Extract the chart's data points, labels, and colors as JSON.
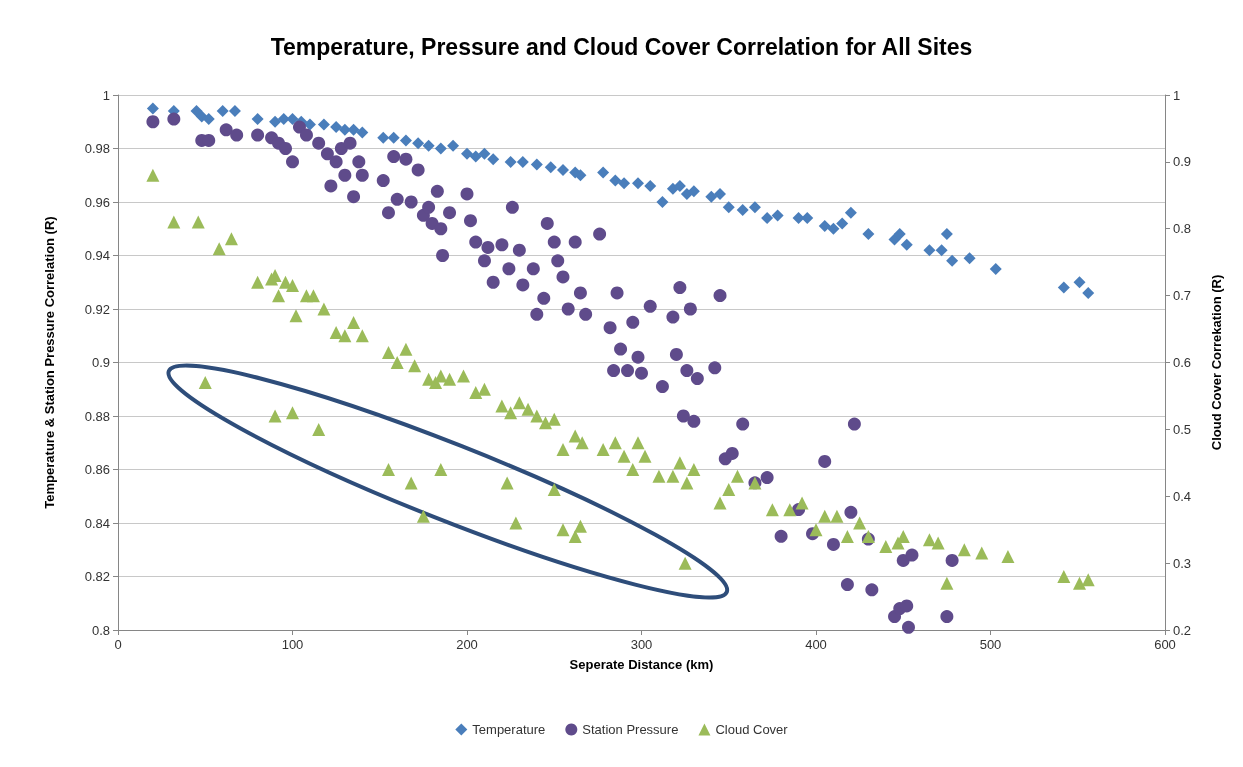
{
  "chart_data": {
    "type": "scatter",
    "title": "Temperature, Pressure and Cloud Cover Correlation for All Sites",
    "xlabel": "Seperate Distance (km)",
    "ylabel": "Temperature & Station Pressure Correlation (R)",
    "y2label": "Cloud Cover Correkation (R)",
    "xlim": [
      0,
      600
    ],
    "xticks": [
      0,
      100,
      200,
      300,
      400,
      500,
      600
    ],
    "ylim": [
      0.8,
      1
    ],
    "yticks": [
      0.8,
      0.82,
      0.84,
      0.86,
      0.88,
      0.9,
      0.92,
      0.94,
      0.96,
      0.98,
      1
    ],
    "y2lim": [
      0.2,
      1
    ],
    "y2ticks": [
      0.2,
      0.3,
      0.4,
      0.5,
      0.6,
      0.7,
      0.8,
      0.9,
      1
    ],
    "grid": "y",
    "legend": "bottom",
    "series": [
      {
        "name": "Temperature",
        "color": "#4a7ebb",
        "marker": "diamond",
        "x": [
          20,
          32,
          45,
          48,
          52,
          60,
          67,
          80,
          90,
          95,
          100,
          105,
          110,
          118,
          125,
          130,
          135,
          140,
          152,
          158,
          165,
          172,
          178,
          185,
          192,
          200,
          205,
          210,
          215,
          225,
          232,
          240,
          248,
          255,
          262,
          265,
          278,
          285,
          290,
          298,
          305,
          312,
          318,
          322,
          326,
          330,
          340,
          345,
          350,
          358,
          365,
          372,
          378,
          390,
          395,
          405,
          410,
          415,
          420,
          430,
          445,
          448,
          452,
          465,
          472,
          475,
          478,
          488,
          503,
          542,
          551,
          556
        ],
        "values": [
          0.995,
          0.994,
          0.994,
          0.992,
          0.991,
          0.994,
          0.994,
          0.991,
          0.99,
          0.991,
          0.991,
          0.99,
          0.989,
          0.989,
          0.988,
          0.987,
          0.987,
          0.986,
          0.984,
          0.984,
          0.983,
          0.982,
          0.981,
          0.98,
          0.981,
          0.978,
          0.977,
          0.978,
          0.976,
          0.975,
          0.975,
          0.974,
          0.973,
          0.972,
          0.971,
          0.97,
          0.971,
          0.968,
          0.967,
          0.967,
          0.966,
          0.96,
          0.965,
          0.966,
          0.963,
          0.964,
          0.962,
          0.963,
          0.958,
          0.957,
          0.958,
          0.954,
          0.955,
          0.954,
          0.954,
          0.951,
          0.95,
          0.952,
          0.956,
          0.948,
          0.946,
          0.948,
          0.944,
          0.942,
          0.942,
          0.948,
          0.938,
          0.939,
          0.935,
          0.928,
          0.93,
          0.926
        ]
      },
      {
        "name": "Station Pressure",
        "color": "#5f4b8b",
        "marker": "circle",
        "x": [
          20,
          32,
          48,
          52,
          62,
          68,
          80,
          88,
          92,
          96,
          100,
          104,
          108,
          115,
          120,
          122,
          125,
          128,
          130,
          133,
          135,
          138,
          140,
          152,
          155,
          158,
          160,
          165,
          168,
          172,
          175,
          178,
          180,
          183,
          185,
          186,
          190,
          200,
          202,
          205,
          210,
          212,
          215,
          220,
          224,
          226,
          230,
          232,
          238,
          240,
          244,
          246,
          250,
          252,
          255,
          258,
          262,
          265,
          268,
          276,
          282,
          284,
          286,
          288,
          292,
          295,
          298,
          300,
          305,
          312,
          318,
          320,
          322,
          324,
          326,
          328,
          330,
          332,
          342,
          345,
          348,
          352,
          358,
          365,
          372,
          380,
          390,
          398,
          405,
          410,
          418,
          420,
          422,
          430,
          432,
          445,
          448,
          450,
          452,
          453,
          455,
          475,
          478
        ],
        "values": [
          0.99,
          0.991,
          0.983,
          0.983,
          0.987,
          0.985,
          0.985,
          0.984,
          0.982,
          0.98,
          0.975,
          0.988,
          0.985,
          0.982,
          0.978,
          0.966,
          0.975,
          0.98,
          0.97,
          0.982,
          0.962,
          0.975,
          0.97,
          0.968,
          0.956,
          0.977,
          0.961,
          0.976,
          0.96,
          0.972,
          0.955,
          0.958,
          0.952,
          0.964,
          0.95,
          0.94,
          0.956,
          0.963,
          0.953,
          0.945,
          0.938,
          0.943,
          0.93,
          0.944,
          0.935,
          0.958,
          0.942,
          0.929,
          0.935,
          0.918,
          0.924,
          0.952,
          0.945,
          0.938,
          0.932,
          0.92,
          0.945,
          0.926,
          0.918,
          0.948,
          0.913,
          0.897,
          0.926,
          0.905,
          0.897,
          0.915,
          0.902,
          0.896,
          0.921,
          0.891,
          0.917,
          0.903,
          0.928,
          0.88,
          0.897,
          0.92,
          0.878,
          0.894,
          0.898,
          0.925,
          0.864,
          0.866,
          0.877,
          0.855,
          0.857,
          0.835,
          0.845,
          0.836,
          0.863,
          0.832,
          0.817,
          0.844,
          0.877,
          0.834,
          0.815,
          0.805,
          0.808,
          0.826,
          0.809,
          0.801,
          0.828,
          0.805,
          0.826
        ]
      },
      {
        "name": "Cloud Cover",
        "color": "#9bbb59",
        "marker": "triangle",
        "axis": "y2",
        "x": [
          20,
          32,
          46,
          58,
          65,
          80,
          88,
          90,
          92,
          96,
          100,
          102,
          108,
          112,
          118,
          125,
          130,
          135,
          140,
          155,
          160,
          165,
          170,
          178,
          182,
          185,
          190,
          198,
          205,
          210,
          220,
          225,
          230,
          235,
          240,
          245,
          250,
          255,
          262,
          266,
          278,
          285,
          290,
          295,
          298,
          302,
          310,
          318,
          322,
          326,
          330,
          345,
          350,
          355,
          365,
          375,
          385,
          392,
          400,
          405,
          412,
          418,
          425,
          430,
          440,
          447,
          450,
          465,
          470,
          475,
          485,
          495,
          510,
          542,
          551,
          556,
          50,
          90,
          100,
          115,
          155,
          168,
          175,
          185,
          223,
          228,
          250,
          255,
          262,
          265,
          325
        ],
        "values": [
          0.88,
          0.81,
          0.81,
          0.77,
          0.785,
          0.72,
          0.725,
          0.73,
          0.7,
          0.72,
          0.715,
          0.67,
          0.7,
          0.7,
          0.68,
          0.645,
          0.64,
          0.66,
          0.64,
          0.615,
          0.6,
          0.62,
          0.595,
          0.575,
          0.57,
          0.58,
          0.575,
          0.58,
          0.555,
          0.56,
          0.535,
          0.525,
          0.54,
          0.53,
          0.52,
          0.51,
          0.515,
          0.47,
          0.49,
          0.48,
          0.47,
          0.48,
          0.46,
          0.44,
          0.48,
          0.46,
          0.43,
          0.43,
          0.45,
          0.42,
          0.44,
          0.39,
          0.41,
          0.43,
          0.42,
          0.38,
          0.38,
          0.39,
          0.35,
          0.37,
          0.37,
          0.34,
          0.36,
          0.34,
          0.325,
          0.33,
          0.34,
          0.335,
          0.33,
          0.27,
          0.32,
          0.315,
          0.31,
          0.28,
          0.27,
          0.275,
          0.57,
          0.52,
          0.525,
          0.5,
          0.44,
          0.42,
          0.37,
          0.44,
          0.42,
          0.36,
          0.41,
          0.35,
          0.34,
          0.355,
          0.3
        ]
      }
    ]
  }
}
